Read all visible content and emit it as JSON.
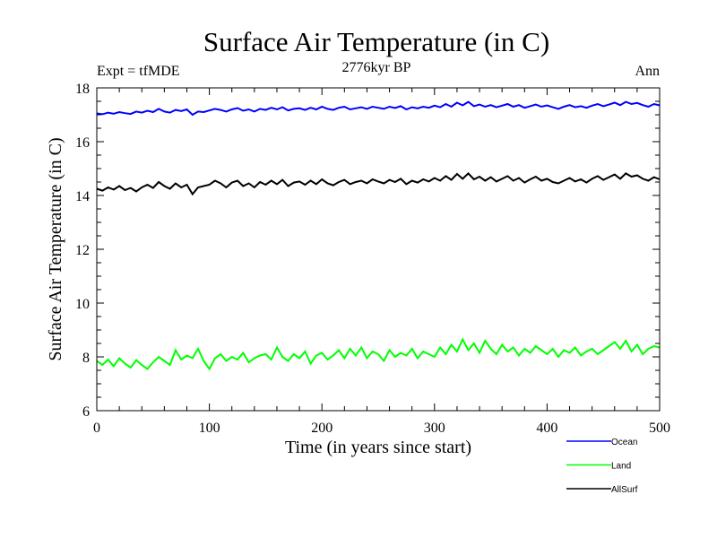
{
  "chart_data": {
    "type": "line",
    "title": "Surface Air Temperature (in C)",
    "subtitle": "2776kyr BP",
    "left_annotation": "Expt = tfMDE",
    "right_annotation": "Ann",
    "xlabel": "Time (in years since start)",
    "ylabel": "Surface Air Temperature (in C)",
    "xlim": [
      0,
      500
    ],
    "ylim": [
      6,
      18
    ],
    "xticks": [
      0,
      100,
      200,
      300,
      400,
      500
    ],
    "yticks": [
      6,
      8,
      10,
      12,
      14,
      16,
      18
    ],
    "x_step": 5,
    "legend_placement": "bottom-right, outside plot",
    "series": [
      {
        "name": "Ocean",
        "color": "#0000ff",
        "values": [
          17.05,
          17.02,
          17.08,
          17.04,
          17.1,
          17.06,
          17.03,
          17.12,
          17.08,
          17.15,
          17.1,
          17.22,
          17.12,
          17.08,
          17.18,
          17.14,
          17.2,
          17.0,
          17.12,
          17.1,
          17.16,
          17.22,
          17.18,
          17.12,
          17.2,
          17.25,
          17.15,
          17.2,
          17.12,
          17.22,
          17.18,
          17.26,
          17.2,
          17.28,
          17.16,
          17.22,
          17.24,
          17.18,
          17.26,
          17.2,
          17.3,
          17.22,
          17.18,
          17.26,
          17.3,
          17.2,
          17.24,
          17.28,
          17.22,
          17.3,
          17.26,
          17.22,
          17.3,
          17.25,
          17.32,
          17.2,
          17.28,
          17.24,
          17.3,
          17.26,
          17.34,
          17.28,
          17.4,
          17.3,
          17.45,
          17.35,
          17.48,
          17.32,
          17.38,
          17.3,
          17.36,
          17.28,
          17.34,
          17.4,
          17.3,
          17.36,
          17.26,
          17.32,
          17.38,
          17.3,
          17.35,
          17.28,
          17.22,
          17.3,
          17.36,
          17.28,
          17.32,
          17.26,
          17.34,
          17.4,
          17.32,
          17.38,
          17.45,
          17.36,
          17.48,
          17.4,
          17.44,
          17.36,
          17.3,
          17.4,
          17.35
        ]
      },
      {
        "name": "Land",
        "color": "#00ff00",
        "values": [
          7.85,
          7.7,
          7.9,
          7.65,
          7.95,
          7.75,
          7.6,
          7.88,
          7.7,
          7.55,
          7.8,
          8.0,
          7.85,
          7.7,
          8.25,
          7.9,
          8.05,
          7.95,
          8.3,
          7.85,
          7.55,
          7.95,
          8.1,
          7.85,
          8.0,
          7.9,
          8.15,
          7.8,
          7.95,
          8.05,
          8.1,
          7.9,
          8.35,
          8.0,
          7.85,
          8.1,
          7.95,
          8.2,
          7.75,
          8.05,
          8.15,
          7.9,
          8.05,
          8.25,
          7.95,
          8.3,
          8.05,
          8.35,
          7.95,
          8.2,
          8.1,
          7.85,
          8.25,
          8.0,
          8.15,
          8.05,
          8.3,
          7.95,
          8.2,
          8.1,
          8.0,
          8.35,
          8.1,
          8.45,
          8.2,
          8.65,
          8.25,
          8.5,
          8.15,
          8.6,
          8.3,
          8.1,
          8.45,
          8.2,
          8.35,
          8.05,
          8.3,
          8.15,
          8.4,
          8.25,
          8.1,
          8.3,
          8.0,
          8.25,
          8.15,
          8.35,
          8.05,
          8.2,
          8.3,
          8.1,
          8.25,
          8.4,
          8.55,
          8.3,
          8.6,
          8.2,
          8.45,
          8.1,
          8.3,
          8.4,
          8.35
        ]
      },
      {
        "name": "AllSurf",
        "color": "#000000",
        "values": [
          14.25,
          14.18,
          14.3,
          14.22,
          14.35,
          14.2,
          14.28,
          14.15,
          14.3,
          14.4,
          14.28,
          14.5,
          14.35,
          14.25,
          14.45,
          14.3,
          14.4,
          14.05,
          14.3,
          14.35,
          14.4,
          14.55,
          14.45,
          14.3,
          14.48,
          14.55,
          14.35,
          14.45,
          14.3,
          14.5,
          14.4,
          14.55,
          14.42,
          14.58,
          14.35,
          14.48,
          14.52,
          14.4,
          14.55,
          14.42,
          14.6,
          14.45,
          14.38,
          14.5,
          14.58,
          14.42,
          14.5,
          14.55,
          14.45,
          14.6,
          14.52,
          14.45,
          14.58,
          14.5,
          14.62,
          14.42,
          14.55,
          14.48,
          14.6,
          14.52,
          14.65,
          14.55,
          14.72,
          14.58,
          14.8,
          14.62,
          14.82,
          14.6,
          14.7,
          14.55,
          14.68,
          14.52,
          14.62,
          14.72,
          14.55,
          14.65,
          14.48,
          14.6,
          14.7,
          14.55,
          14.62,
          14.5,
          14.45,
          14.55,
          14.65,
          14.52,
          14.6,
          14.48,
          14.62,
          14.72,
          14.58,
          14.68,
          14.78,
          14.62,
          14.82,
          14.7,
          14.75,
          14.62,
          14.55,
          14.68,
          14.6
        ]
      }
    ]
  }
}
